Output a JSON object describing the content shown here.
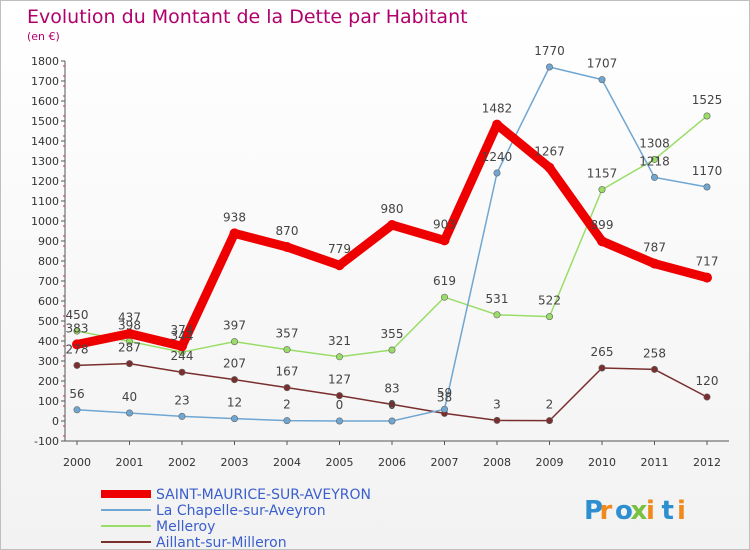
{
  "chart_data": {
    "type": "line",
    "title": "Evolution du Montant de la Dette par Habitant",
    "subtitle": "(en €)",
    "categories": [
      "2000",
      "2001",
      "2002",
      "2003",
      "2004",
      "2005",
      "2006",
      "2007",
      "2008",
      "2009",
      "2010",
      "2011",
      "2012"
    ],
    "ylim": [
      -100,
      1800
    ],
    "yticks": [
      -100,
      0,
      100,
      200,
      300,
      400,
      500,
      600,
      700,
      800,
      900,
      1000,
      1100,
      1200,
      1300,
      1400,
      1500,
      1600,
      1700,
      1800
    ],
    "grid": false,
    "legend_position": "bottom-left",
    "series": [
      {
        "name": "SAINT-MAURICE-SUR-AVEYRON",
        "color": "#ee0000",
        "values": [
          383,
          437,
          374,
          938,
          870,
          779,
          980,
          903,
          1482,
          1267,
          899,
          787,
          717
        ]
      },
      {
        "name": "La Chapelle-sur-Aveyron",
        "color": "#6fa6d2",
        "values": [
          56,
          40,
          23,
          12,
          2,
          0,
          0,
          59,
          1240,
          1770,
          1707,
          1218,
          1170
        ]
      },
      {
        "name": "Melleroy",
        "color": "#99dd66",
        "values": [
          450,
          398,
          344,
          397,
          357,
          321,
          355,
          619,
          531,
          522,
          1157,
          1308,
          1525
        ]
      },
      {
        "name": "Aillant-sur-Milleron",
        "color": "#7a2e2e",
        "values": [
          278,
          287,
          244,
          207,
          167,
          127,
          83,
          38,
          3,
          2,
          265,
          258,
          120
        ]
      }
    ]
  },
  "logo": {
    "letters": [
      "P",
      "r",
      "o",
      "x",
      "i",
      "t",
      "i"
    ],
    "colors": [
      "#2d8fd0",
      "#f08a1c",
      "#2d8fd0",
      "#7ac142",
      "#f08a1c",
      "#2d8fd0",
      "#f08a1c"
    ]
  }
}
